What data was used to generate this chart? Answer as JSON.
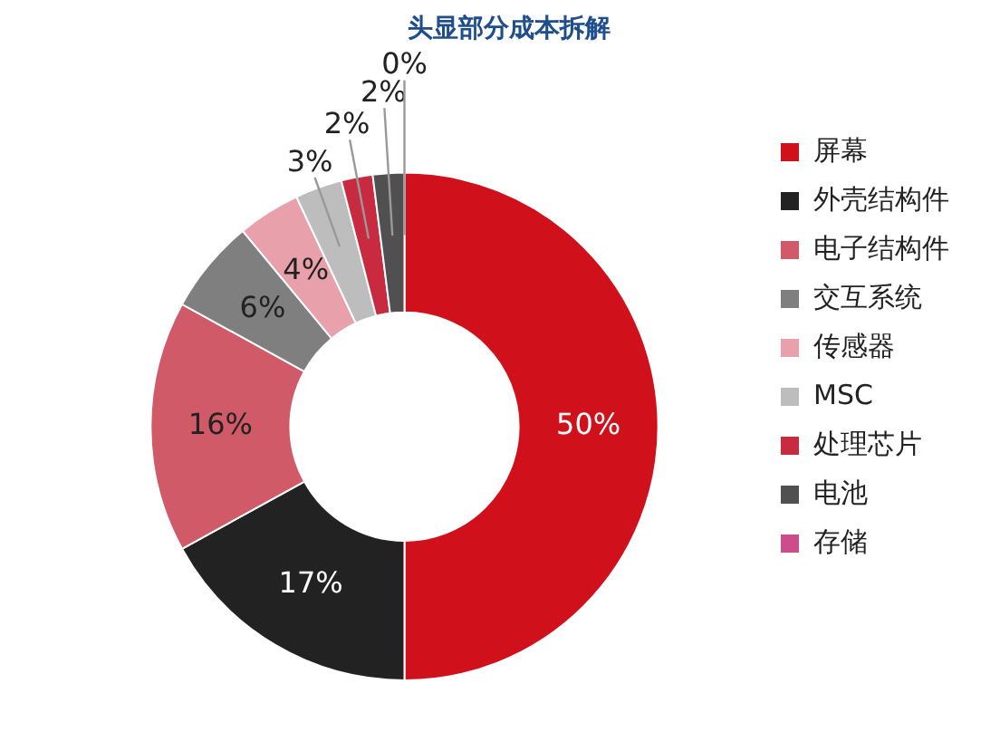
{
  "chart_data": {
    "type": "donut",
    "title": "头显部分成本拆解",
    "categories": [
      "屏幕",
      "外壳结构件",
      "电子结构件",
      "交互系统",
      "传感器",
      "MSC",
      "处理芯片",
      "电池",
      "存储"
    ],
    "values": [
      50,
      17,
      16,
      6,
      4,
      3,
      2,
      2,
      0
    ],
    "value_labels": [
      "50%",
      "17%",
      "16%",
      "6%",
      "4%",
      "3%",
      "2%",
      "2%",
      "0%"
    ],
    "colors": [
      "#d0101a",
      "#222222",
      "#d05a68",
      "#7f7f7f",
      "#e8a0aa",
      "#bdbdbd",
      "#c82a40",
      "#505050",
      "#cc4c8c"
    ],
    "legend": "right"
  }
}
